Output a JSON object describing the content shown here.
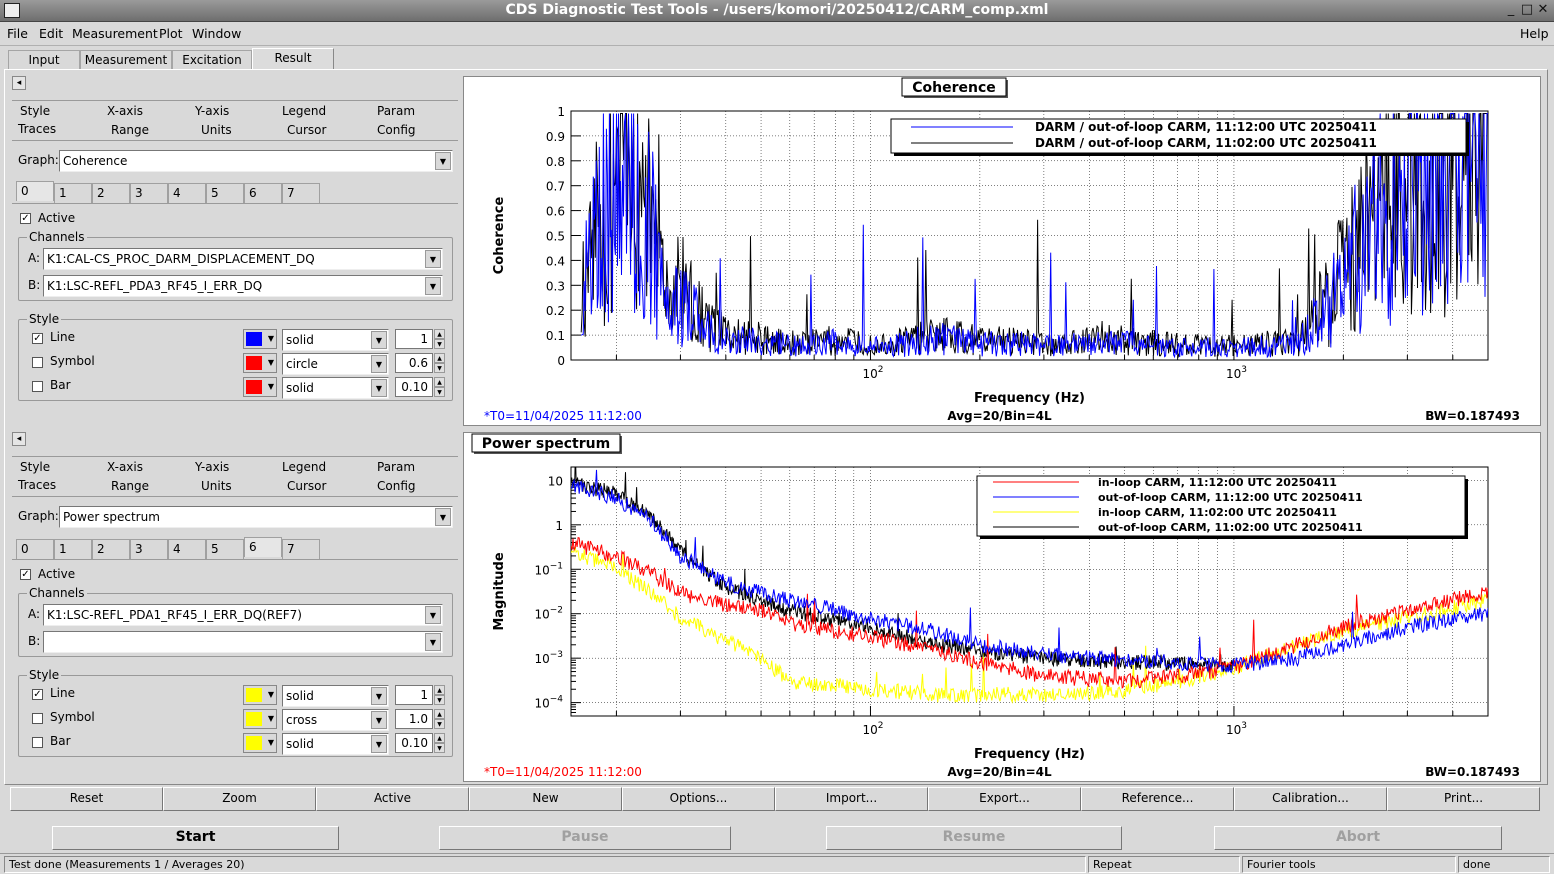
{
  "window": {
    "title": "CDS Diagnostic Test Tools - /users/komori/20250412/CARM_comp.xml",
    "min": "_",
    "max": "□",
    "close": "✕"
  },
  "menu": {
    "file": "File",
    "edit": "Edit",
    "measurement": "Measurement",
    "plot": "Plot",
    "window": "Window",
    "help": "Help"
  },
  "tabs": [
    "Input",
    "Measurement",
    "Excitation",
    "Result"
  ],
  "top_panel": {
    "options_row1": [
      "Style",
      "X-axis",
      "Y-axis",
      "Legend",
      "Param"
    ],
    "options_row2": [
      "Traces",
      "Range",
      "Units",
      "Cursor",
      "Config"
    ],
    "graph_label": "Graph:",
    "graph": "Coherence",
    "trace_tabs": [
      "0",
      "1",
      "2",
      "3",
      "4",
      "5",
      "6",
      "7"
    ],
    "active": "Active",
    "channels": "Channels",
    "a_label": "A:",
    "a": "K1:CAL-CS_PROC_DARM_DISPLACEMENT_DQ",
    "b_label": "B:",
    "b": "K1:LSC-REFL_PDA3_RF45_I_ERR_DQ",
    "style": "Style",
    "line": "Line",
    "line_style": "solid",
    "line_width": "1",
    "line_color": "#0000ff",
    "symbol": "Symbol",
    "symbol_style": "circle",
    "symbol_size": "0.6",
    "symbol_color": "#ff0000",
    "bar": "Bar",
    "bar_style": "solid",
    "bar_width": "0.10",
    "bar_color": "#ff0000"
  },
  "bottom_panel": {
    "options_row1": [
      "Style",
      "X-axis",
      "Y-axis",
      "Legend",
      "Param"
    ],
    "options_row2": [
      "Traces",
      "Range",
      "Units",
      "Cursor",
      "Config"
    ],
    "graph_label": "Graph:",
    "graph": "Power spectrum",
    "trace_tabs": [
      "0",
      "1",
      "2",
      "3",
      "4",
      "5",
      "6",
      "7"
    ],
    "active": "Active",
    "channels": "Channels",
    "a_label": "A:",
    "a": "K1:LSC-REFL_PDA1_RF45_I_ERR_DQ(REF7)",
    "b_label": "B:",
    "b": "",
    "style": "Style",
    "line": "Line",
    "line_style": "solid",
    "line_width": "1",
    "line_color": "#ffff00",
    "symbol": "Symbol",
    "symbol_style": "cross",
    "symbol_size": "1.0",
    "symbol_color": "#ffff00",
    "bar": "Bar",
    "bar_style": "solid",
    "bar_width": "0.10",
    "bar_color": "#ffff00"
  },
  "collapse_arrow": "◂",
  "plot1": {
    "title": "Coherence",
    "ylabel": "Coherence",
    "xlabel": "Frequency (Hz)",
    "footer_left": "*T0=11/04/2025 11:12:00",
    "footer_mid": "Avg=20/Bin=4L",
    "footer_right": "BW=0.187493",
    "yticks": [
      "0",
      "0.1",
      "0.2",
      "0.3",
      "0.4",
      "0.5",
      "0.6",
      "0.7",
      "0.8",
      "0.9",
      "1"
    ],
    "xticks": [
      {
        "base": "10",
        "exp": "2"
      },
      {
        "base": "10",
        "exp": "3"
      }
    ],
    "legend": [
      "DARM / out-of-loop CARM, 11:12:00 UTC 20250411",
      "DARM / out-of-loop CARM, 11:02:00 UTC 20250411"
    ]
  },
  "plot2": {
    "title": "Power spectrum",
    "ylabel": "Magnitude",
    "xlabel": "Frequency (Hz)",
    "footer_left": "*T0=11/04/2025 11:12:00",
    "footer_mid": "Avg=20/Bin=4L",
    "footer_right": "BW=0.187493",
    "yticks": [
      {
        "base": "10",
        "exp": ""
      },
      {
        "base": "1",
        "exp": ""
      },
      {
        "base": "10",
        "exp": "−1"
      },
      {
        "base": "10",
        "exp": "−2"
      },
      {
        "base": "10",
        "exp": "−3"
      },
      {
        "base": "10",
        "exp": "−4"
      }
    ],
    "xticks": [
      {
        "base": "10",
        "exp": "2"
      },
      {
        "base": "10",
        "exp": "3"
      }
    ],
    "legend": [
      "in-loop CARM, 11:12:00 UTC 20250411",
      "out-of-loop CARM, 11:12:00 UTC 20250411",
      "in-loop CARM, 11:02:00 UTC 20250411",
      "out-of-loop CARM, 11:02:00 UTC 20250411"
    ]
  },
  "chart_data": [
    {
      "type": "line",
      "title": "Coherence",
      "xlabel": "Frequency (Hz)",
      "ylabel": "Coherence",
      "x_scale": "log",
      "xlim": [
        15,
        5000
      ],
      "ylim": [
        0,
        1
      ],
      "grid": true,
      "legend_position": "top-right",
      "series": [
        {
          "name": "DARM / out-of-loop CARM, 11:12:00 UTC 20250411",
          "color": "#0000ff",
          "x": [
            16,
            18,
            20,
            22,
            25,
            28,
            30,
            35,
            40,
            50,
            60,
            70,
            80,
            100,
            120,
            150,
            200,
            300,
            500,
            700,
            1000,
            1500,
            2000,
            2500,
            3000,
            4000,
            5000
          ],
          "y": [
            0.3,
            0.6,
            0.9,
            0.8,
            0.5,
            0.15,
            0.25,
            0.12,
            0.08,
            0.07,
            0.06,
            0.06,
            0.07,
            0.05,
            0.06,
            0.09,
            0.07,
            0.06,
            0.07,
            0.05,
            0.05,
            0.06,
            0.3,
            0.6,
            0.8,
            0.85,
            0.9
          ]
        },
        {
          "name": "DARM / out-of-loop CARM, 11:02:00 UTC 20250411",
          "color": "#000000",
          "x": [
            16,
            18,
            20,
            22,
            25,
            28,
            30,
            35,
            40,
            50,
            60,
            70,
            80,
            100,
            120,
            150,
            200,
            300,
            500,
            700,
            1000,
            1500,
            2000,
            2500,
            3000,
            4000,
            5000
          ],
          "y": [
            0.25,
            0.55,
            0.85,
            0.75,
            0.55,
            0.2,
            0.3,
            0.15,
            0.1,
            0.08,
            0.07,
            0.07,
            0.08,
            0.06,
            0.07,
            0.1,
            0.08,
            0.07,
            0.08,
            0.06,
            0.06,
            0.07,
            0.35,
            0.6,
            0.8,
            0.85,
            0.9
          ]
        }
      ]
    },
    {
      "type": "line",
      "title": "Power spectrum",
      "xlabel": "Frequency (Hz)",
      "ylabel": "Magnitude",
      "x_scale": "log",
      "y_scale": "log",
      "xlim": [
        15,
        5000
      ],
      "ylim": [
        5e-05,
        20
      ],
      "grid": true,
      "legend_position": "top-right",
      "series": [
        {
          "name": "in-loop CARM, 11:12:00 UTC 20250411",
          "color": "#ff0000",
          "x": [
            15,
            20,
            25,
            30,
            40,
            50,
            60,
            80,
            100,
            150,
            200,
            300,
            500,
            700,
            1000,
            1500,
            2000,
            3000,
            5000
          ],
          "y": [
            0.4,
            0.2,
            0.08,
            0.03,
            0.015,
            0.012,
            0.006,
            0.004,
            0.003,
            0.0015,
            0.0008,
            0.0004,
            0.0003,
            0.0004,
            0.0006,
            0.002,
            0.005,
            0.012,
            0.03
          ]
        },
        {
          "name": "out-of-loop CARM, 11:12:00 UTC 20250411",
          "color": "#0000ff",
          "x": [
            15,
            20,
            25,
            30,
            40,
            50,
            60,
            80,
            100,
            150,
            200,
            300,
            500,
            700,
            1000,
            1500,
            2000,
            3000,
            5000
          ],
          "y": [
            8,
            4,
            1.2,
            0.2,
            0.05,
            0.03,
            0.02,
            0.012,
            0.008,
            0.004,
            0.002,
            0.0012,
            0.0009,
            0.0008,
            0.0007,
            0.001,
            0.002,
            0.005,
            0.01
          ]
        },
        {
          "name": "in-loop CARM, 11:02:00 UTC 20250411",
          "color": "#ffff00",
          "x": [
            15,
            20,
            25,
            30,
            40,
            50,
            60,
            80,
            100,
            150,
            200,
            300,
            500,
            700,
            1000,
            1500,
            2000,
            3000,
            5000
          ],
          "y": [
            0.25,
            0.1,
            0.03,
            0.008,
            0.0025,
            0.001,
            0.0003,
            0.00025,
            0.0002,
            0.00015,
            0.00015,
            0.00015,
            0.00018,
            0.0003,
            0.0006,
            0.002,
            0.004,
            0.008,
            0.02
          ]
        },
        {
          "name": "out-of-loop CARM, 11:02:00 UTC 20250411",
          "color": "#000000",
          "x": [
            15,
            20,
            25,
            30,
            40,
            50,
            60,
            80,
            100,
            150,
            200,
            300,
            500,
            700,
            1000
          ],
          "y": [
            9,
            5,
            1.5,
            0.25,
            0.04,
            0.02,
            0.012,
            0.007,
            0.005,
            0.002,
            0.0015,
            0.001,
            0.0008,
            0.0008,
            0.0007
          ]
        }
      ]
    }
  ],
  "bottom_buttons": [
    "Reset",
    "Zoom",
    "Active",
    "New",
    "Options...",
    "Import...",
    "Export...",
    "Reference...",
    "Calibration...",
    "Print..."
  ],
  "controls": {
    "start": "Start",
    "pause": "Pause",
    "resume": "Resume",
    "abort": "Abort"
  },
  "status": {
    "message": "Test done (Measurements 1 / Averages 20)",
    "repeat": "Repeat",
    "fourier": "Fourier tools",
    "done": "done"
  }
}
